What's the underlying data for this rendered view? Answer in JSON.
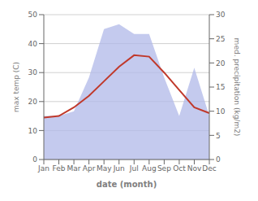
{
  "chart_data": {
    "type": "line",
    "xlabel": "date (month)",
    "ylabel": "max temp (C)",
    "y2label": "med. precipitation (kg/m2)",
    "categories": [
      "Jan",
      "Feb",
      "Mar",
      "Apr",
      "May",
      "Jun",
      "Jul",
      "Aug",
      "Sep",
      "Oct",
      "Nov",
      "Dec"
    ],
    "series": [
      {
        "name": "med. precipitation (kg/m2)",
        "type": "area",
        "axis": "y2",
        "color": "#b0b8e8",
        "values": [
          9,
          9,
          10,
          17,
          27,
          28,
          26,
          26,
          17,
          9,
          19,
          9
        ]
      },
      {
        "name": "max temp (C)",
        "type": "line",
        "axis": "y",
        "color": "#c0392b",
        "values": [
          14.5,
          15.0,
          18.0,
          22.0,
          27.0,
          32.0,
          36.0,
          35.5,
          30.0,
          24.0,
          18.0,
          16.0
        ]
      }
    ],
    "ylim": [
      0,
      50
    ],
    "yticks": [
      0,
      10,
      20,
      30,
      40,
      50
    ],
    "y2lim": [
      0,
      30
    ],
    "y2ticks": [
      0,
      5,
      10,
      15,
      20,
      25,
      30
    ],
    "grid": true
  }
}
